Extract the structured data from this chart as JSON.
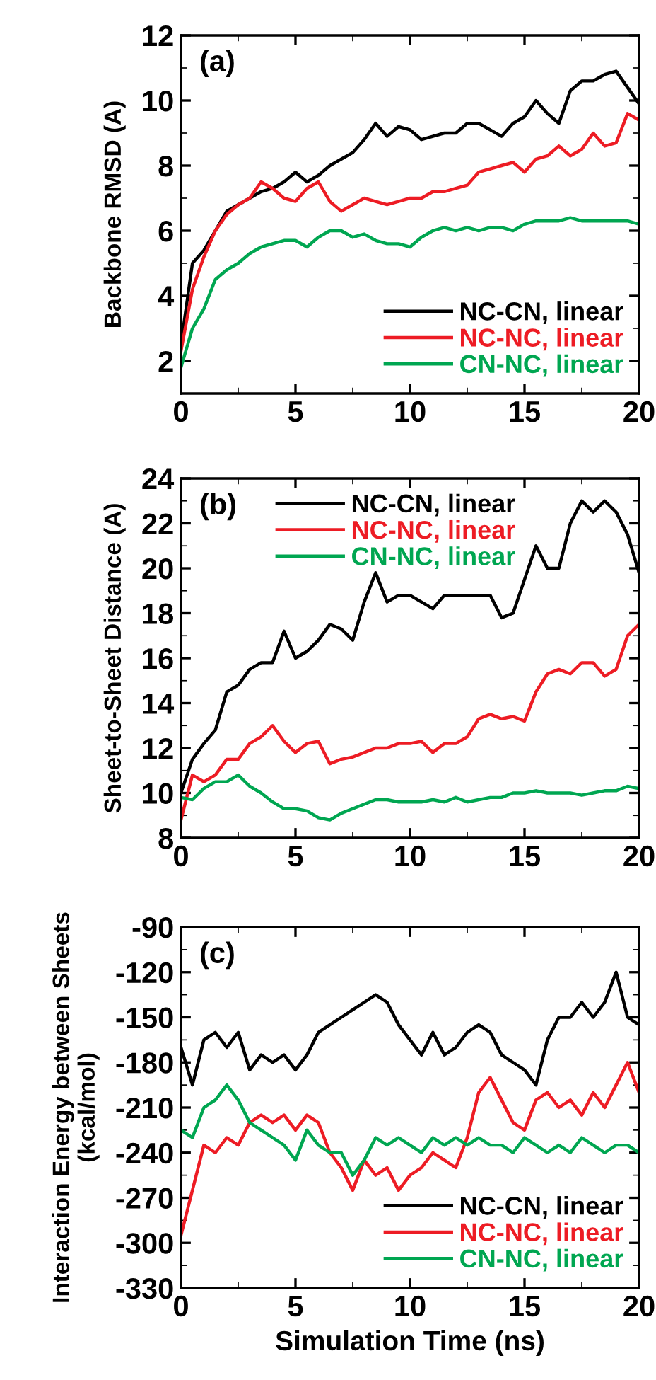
{
  "chart_data": [
    {
      "type": "line",
      "ylabel": "Backbone RMSD (A)",
      "annotations": [
        "(a)"
      ],
      "legend": "bottom right",
      "grid": false,
      "x": [
        0,
        0.5,
        1,
        1.5,
        2,
        2.5,
        3,
        3.5,
        4,
        4.5,
        5,
        5.5,
        6,
        6.5,
        7,
        7.5,
        8,
        8.5,
        9,
        9.5,
        10,
        10.5,
        11,
        11.5,
        12,
        12.5,
        13,
        13.5,
        14,
        14.5,
        15,
        15.5,
        16,
        16.5,
        17,
        17.5,
        18,
        18.5,
        19,
        19.5,
        20
      ],
      "xlim": [
        0,
        20
      ],
      "xticks": [
        0,
        5,
        10,
        15,
        20
      ],
      "ylim": [
        1,
        12
      ],
      "yticks": [
        2,
        4,
        6,
        8,
        10,
        12
      ],
      "series": [
        {
          "name": "NC-CN, linear",
          "color": "#000000",
          "values": [
            2.5,
            5.0,
            5.4,
            6.0,
            6.6,
            6.8,
            7.0,
            7.2,
            7.3,
            7.5,
            7.8,
            7.5,
            7.7,
            8.0,
            8.2,
            8.4,
            8.8,
            9.3,
            8.9,
            9.2,
            9.1,
            8.8,
            8.9,
            9.0,
            9.0,
            9.3,
            9.3,
            9.1,
            8.9,
            9.3,
            9.5,
            10.0,
            9.6,
            9.3,
            10.3,
            10.6,
            10.6,
            10.8,
            10.9,
            10.4,
            9.9
          ]
        },
        {
          "name": "NC-NC, linear",
          "color": "#ed1c24",
          "values": [
            2.3,
            4.2,
            5.2,
            6.0,
            6.5,
            6.8,
            7.0,
            7.5,
            7.3,
            7.0,
            6.9,
            7.3,
            7.5,
            6.9,
            6.6,
            6.8,
            7.0,
            6.9,
            6.8,
            6.9,
            7.0,
            7.0,
            7.2,
            7.2,
            7.3,
            7.4,
            7.8,
            7.9,
            8.0,
            8.1,
            7.8,
            8.2,
            8.3,
            8.6,
            8.3,
            8.5,
            9.0,
            8.6,
            8.7,
            9.6,
            9.4
          ]
        },
        {
          "name": "CN-NC, linear",
          "color": "#00a651",
          "values": [
            1.8,
            3.0,
            3.6,
            4.5,
            4.8,
            5.0,
            5.3,
            5.5,
            5.6,
            5.7,
            5.7,
            5.5,
            5.8,
            6.0,
            6.0,
            5.8,
            5.9,
            5.7,
            5.6,
            5.6,
            5.5,
            5.8,
            6.0,
            6.1,
            6.0,
            6.1,
            6.0,
            6.1,
            6.1,
            6.0,
            6.2,
            6.3,
            6.3,
            6.3,
            6.4,
            6.3,
            6.3,
            6.3,
            6.3,
            6.3,
            6.2
          ]
        }
      ]
    },
    {
      "type": "line",
      "ylabel": "Sheet-to-Sheet Distance (A)",
      "annotations": [
        "(b)"
      ],
      "legend": "top",
      "grid": false,
      "x": [
        0,
        0.5,
        1,
        1.5,
        2,
        2.5,
        3,
        3.5,
        4,
        4.5,
        5,
        5.5,
        6,
        6.5,
        7,
        7.5,
        8,
        8.5,
        9,
        9.5,
        10,
        10.5,
        11,
        11.5,
        12,
        12.5,
        13,
        13.5,
        14,
        14.5,
        15,
        15.5,
        16,
        16.5,
        17,
        17.5,
        18,
        18.5,
        19,
        19.5,
        20
      ],
      "xlim": [
        0,
        20
      ],
      "xticks": [
        0,
        5,
        10,
        15,
        20
      ],
      "ylim": [
        8,
        24
      ],
      "yticks": [
        8,
        10,
        12,
        14,
        16,
        18,
        20,
        22,
        24
      ],
      "series": [
        {
          "name": "NC-CN, linear",
          "color": "#000000",
          "values": [
            10,
            11.5,
            12.2,
            12.8,
            14.5,
            14.8,
            15.5,
            15.8,
            15.8,
            17.2,
            16.0,
            16.3,
            16.8,
            17.5,
            17.3,
            16.8,
            18.5,
            19.8,
            18.5,
            18.8,
            18.8,
            18.5,
            18.2,
            18.8,
            18.8,
            18.8,
            18.8,
            18.8,
            17.8,
            18.0,
            19.5,
            21.0,
            20.0,
            20.0,
            22.0,
            23.0,
            22.5,
            23.0,
            22.5,
            21.5,
            19.8
          ]
        },
        {
          "name": "NC-NC, linear",
          "color": "#ed1c24",
          "values": [
            8.8,
            10.8,
            10.5,
            10.8,
            11.5,
            11.5,
            12.2,
            12.5,
            13.0,
            12.3,
            11.8,
            12.2,
            12.3,
            11.3,
            11.5,
            11.6,
            11.8,
            12.0,
            12.0,
            12.2,
            12.2,
            12.3,
            11.8,
            12.2,
            12.2,
            12.5,
            13.3,
            13.5,
            13.3,
            13.4,
            13.2,
            14.5,
            15.3,
            15.5,
            15.3,
            15.8,
            15.8,
            15.2,
            15.5,
            17.0,
            17.5
          ]
        },
        {
          "name": "CN-NC, linear",
          "color": "#00a651",
          "values": [
            9.8,
            9.7,
            10.2,
            10.5,
            10.5,
            10.8,
            10.3,
            10.0,
            9.6,
            9.3,
            9.3,
            9.2,
            8.9,
            8.8,
            9.1,
            9.3,
            9.5,
            9.7,
            9.7,
            9.6,
            9.6,
            9.6,
            9.7,
            9.6,
            9.8,
            9.6,
            9.7,
            9.8,
            9.8,
            10.0,
            10.0,
            10.1,
            10.0,
            10.0,
            10.0,
            9.9,
            10.0,
            10.1,
            10.1,
            10.3,
            10.2
          ]
        }
      ]
    },
    {
      "type": "line",
      "xlabel": "Simulation Time (ns)",
      "ylabel": "Interaction Energy between Sheets\n(kcal/mol)",
      "annotations": [
        "(c)"
      ],
      "legend": "bottom right",
      "grid": false,
      "x": [
        0,
        0.5,
        1,
        1.5,
        2,
        2.5,
        3,
        3.5,
        4,
        4.5,
        5,
        5.5,
        6,
        6.5,
        7,
        7.5,
        8,
        8.5,
        9,
        9.5,
        10,
        10.5,
        11,
        11.5,
        12,
        12.5,
        13,
        13.5,
        14,
        14.5,
        15,
        15.5,
        16,
        16.5,
        17,
        17.5,
        18,
        18.5,
        19,
        19.5,
        20
      ],
      "xlim": [
        0,
        20
      ],
      "xticks": [
        0,
        5,
        10,
        15,
        20
      ],
      "ylim": [
        -330,
        -90
      ],
      "yticks": [
        -330,
        -300,
        -270,
        -240,
        -210,
        -180,
        -150,
        -120,
        -90
      ],
      "series": [
        {
          "name": "NC-CN, linear",
          "color": "#000000",
          "values": [
            -170,
            -195,
            -165,
            -160,
            -170,
            -160,
            -185,
            -175,
            -180,
            -175,
            -185,
            -175,
            -160,
            -155,
            -150,
            -145,
            -140,
            -135,
            -140,
            -155,
            -165,
            -175,
            -160,
            -175,
            -170,
            -160,
            -155,
            -160,
            -175,
            -180,
            -185,
            -195,
            -165,
            -150,
            -150,
            -140,
            -150,
            -140,
            -120,
            -150,
            -155
          ]
        },
        {
          "name": "NC-NC, linear",
          "color": "#ed1c24",
          "values": [
            -295,
            -265,
            -235,
            -240,
            -230,
            -235,
            -220,
            -215,
            -220,
            -215,
            -225,
            -215,
            -220,
            -240,
            -250,
            -265,
            -245,
            -255,
            -250,
            -265,
            -255,
            -250,
            -240,
            -245,
            -250,
            -230,
            -200,
            -190,
            -205,
            -220,
            -225,
            -205,
            -200,
            -210,
            -205,
            -215,
            -200,
            -210,
            -195,
            -180,
            -200
          ]
        },
        {
          "name": "CN-NC, linear",
          "color": "#00a651",
          "values": [
            -225,
            -230,
            -210,
            -205,
            -195,
            -205,
            -220,
            -225,
            -230,
            -235,
            -245,
            -225,
            -235,
            -240,
            -240,
            -255,
            -245,
            -230,
            -235,
            -230,
            -235,
            -240,
            -230,
            -235,
            -230,
            -235,
            -230,
            -235,
            -235,
            -240,
            -230,
            -235,
            -240,
            -235,
            -240,
            -230,
            -235,
            -240,
            -235,
            -235,
            -240
          ]
        }
      ]
    }
  ]
}
